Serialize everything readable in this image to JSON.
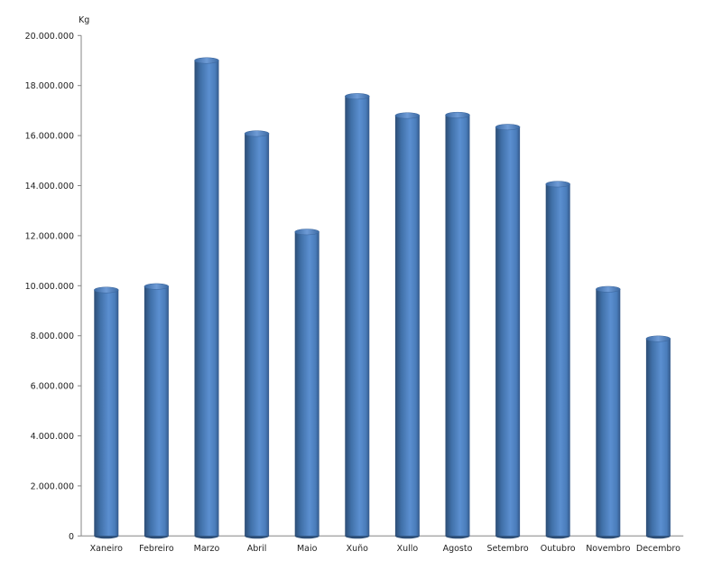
{
  "chart_data": {
    "type": "bar",
    "style": "3d-cylinder",
    "title": "",
    "xlabel": "",
    "ylabel": "Kg",
    "ylim": [
      0,
      20000000
    ],
    "yticks": [
      0,
      2000000,
      4000000,
      6000000,
      8000000,
      10000000,
      12000000,
      14000000,
      16000000,
      18000000,
      20000000
    ],
    "ytick_labels": [
      "0",
      "2.000.000",
      "4.000.000",
      "6.000.000",
      "8.000.000",
      "10.000.000",
      "12.000.000",
      "14.000.000",
      "16.000.000",
      "18.000.000",
      "20.000.000"
    ],
    "grid": false,
    "legend": "none",
    "categories": [
      "Xaneiro",
      "Febreiro",
      "Marzo",
      "Abril",
      "Maio",
      "Xuño",
      "Xullo",
      "Agosto",
      "Setembro",
      "Outubro",
      "Novembro",
      "Decembro"
    ],
    "values": [
      9830000,
      9970000,
      19000000,
      16080000,
      12150000,
      17570000,
      16800000,
      16820000,
      16340000,
      14060000,
      9860000,
      7880000
    ],
    "colors": {
      "bar": "#4f81bd",
      "bar_dark": "#2c4d75",
      "axis": "#868686"
    }
  }
}
